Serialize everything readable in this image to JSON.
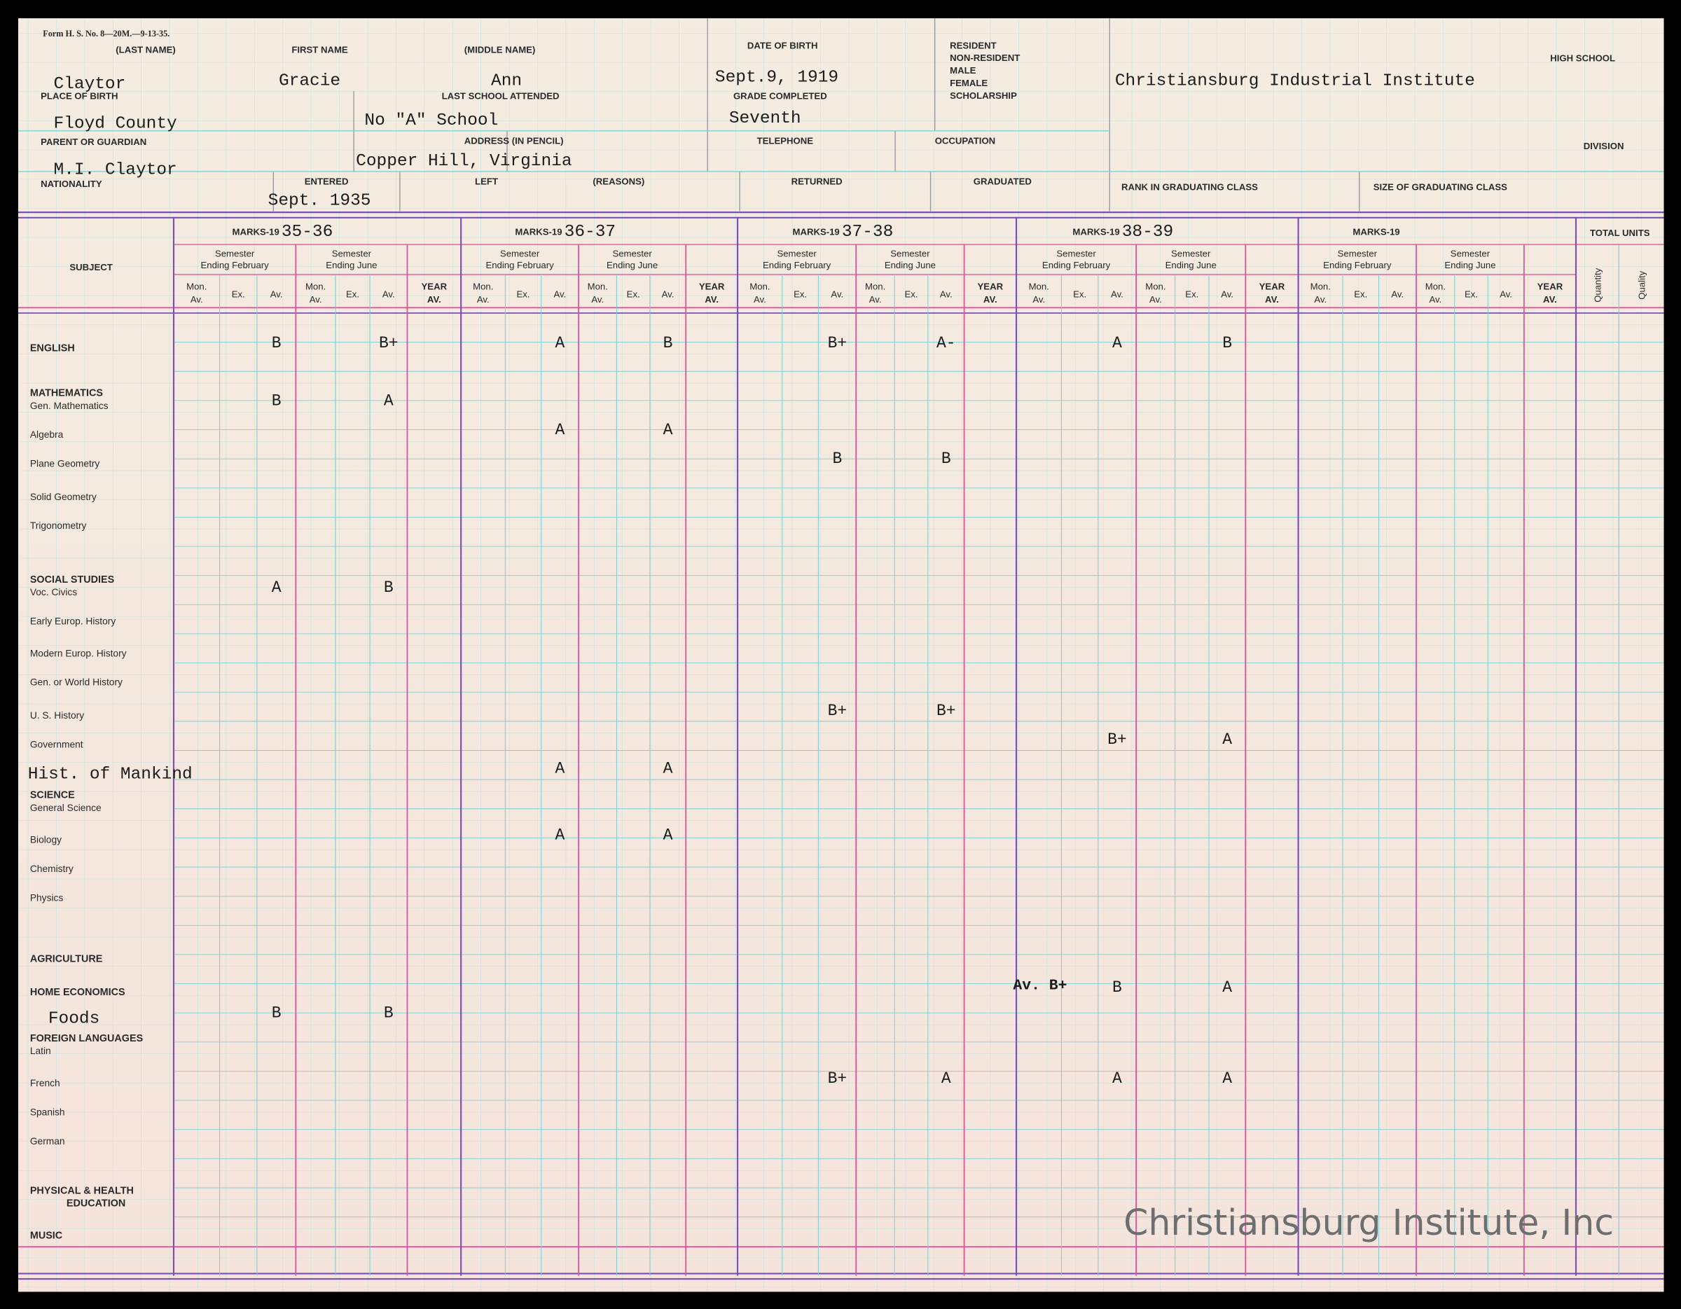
{
  "header": {
    "form_number": "Form H. S. No. 8—20M.—9-13-35.",
    "fields": [
      {
        "label": "(LAST NAME)",
        "value": "Claytor"
      },
      {
        "label": "FIRST NAME",
        "value": "Gracie"
      },
      {
        "label": "(MIDDLE NAME)",
        "value": "Ann"
      },
      {
        "label": "DATE OF BIRTH",
        "value": "Sept.9, 1919"
      },
      {
        "label": "HIGH SCHOOL",
        "value": "Christiansburg Industrial Institute"
      },
      {
        "label": "PLACE OF BIRTH",
        "value": "Floyd County"
      },
      {
        "label": "LAST SCHOOL ATTENDED",
        "value": "No \"A\" School"
      },
      {
        "label": "GRADE COMPLETED",
        "value": "Seventh"
      },
      {
        "label": "PARENT OR GUARDIAN",
        "value": "M.I. Claytor"
      },
      {
        "label": "ADDRESS (IN PENCIL)",
        "value": "Copper Hill, Virginia"
      },
      {
        "label": "TELEPHONE"
      },
      {
        "label": "OCCUPATION"
      },
      {
        "label": "DIVISION"
      },
      {
        "label": "NATIONALITY"
      },
      {
        "label": "ENTERED",
        "value": "Sept. 1935"
      },
      {
        "label": "LEFT"
      },
      {
        "label": "(REASONS)"
      },
      {
        "label": "RETURNED"
      },
      {
        "label": "GRADUATED"
      },
      {
        "label": "RANK IN GRADUATING CLASS"
      },
      {
        "label": "SIZE OF GRADUATING CLASS"
      }
    ],
    "status_options": [
      "RESIDENT",
      "NON-RESIDENT",
      "MALE",
      "FEMALE",
      "SCHOLARSHIP"
    ]
  },
  "table": {
    "subject_header": "SUBJECT",
    "marks_label": "MARKS-19",
    "years": [
      "35-36",
      "36-37",
      "37-38",
      "38-39",
      null
    ],
    "semesters": [
      {
        "line1": "Semester",
        "line2": "Ending February"
      },
      {
        "line1": "Semester",
        "line2": "Ending June"
      }
    ],
    "sub_columns": [
      {
        "line1": "Mon.",
        "line2": "Av."
      },
      {
        "line1": "Ex."
      },
      {
        "line1": "Av."
      }
    ],
    "year_average": {
      "line1": "YEAR",
      "line2": "AV."
    },
    "total_units": "TOTAL UNITS",
    "unit_columns": [
      "Quantity",
      "Quality"
    ],
    "rows": [
      {
        "subject": "ENGLISH",
        "grades": [
          [
            "B",
            "B+"
          ],
          [
            "A",
            "B"
          ],
          [
            "B+",
            "A-"
          ],
          [
            "A",
            "B"
          ]
        ]
      },
      {
        "heading": "MATHEMATICS",
        "subject": "Gen. Mathematics",
        "grades": [
          [
            "B",
            "A"
          ],
          [
            null,
            null
          ],
          [
            null,
            null
          ],
          [
            null,
            null
          ]
        ]
      },
      {
        "subject": "Algebra",
        "grades": [
          [
            null,
            null
          ],
          [
            "A",
            "A"
          ],
          [
            null,
            null
          ],
          [
            null,
            null
          ]
        ]
      },
      {
        "subject": "Plane Geometry",
        "grades": [
          [
            null,
            null
          ],
          [
            null,
            null
          ],
          [
            "B",
            "B"
          ],
          [
            null,
            null
          ]
        ]
      },
      {
        "subject": "Solid Geometry",
        "grades": [
          [
            null,
            null
          ],
          [
            null,
            null
          ],
          [
            null,
            null
          ],
          [
            null,
            null
          ]
        ]
      },
      {
        "subject": "Trigonometry",
        "grades": [
          [
            null,
            null
          ],
          [
            null,
            null
          ],
          [
            null,
            null
          ],
          [
            null,
            null
          ]
        ]
      },
      {
        "heading": "SOCIAL STUDIES",
        "subject": "Voc. Civics",
        "grades": [
          [
            "A",
            "B"
          ],
          [
            null,
            null
          ],
          [
            null,
            null
          ],
          [
            null,
            null
          ]
        ]
      },
      {
        "subject": "Early Europ. History",
        "grades": [
          [
            null,
            null
          ],
          [
            null,
            null
          ],
          [
            null,
            null
          ],
          [
            null,
            null
          ]
        ]
      },
      {
        "subject": "Modern Europ. History",
        "grades": [
          [
            null,
            null
          ],
          [
            null,
            null
          ],
          [
            null,
            null
          ],
          [
            null,
            null
          ]
        ]
      },
      {
        "subject": "Gen. or World History",
        "grades": [
          [
            null,
            null
          ],
          [
            null,
            null
          ],
          [
            null,
            null
          ],
          [
            null,
            null
          ]
        ]
      },
      {
        "subject": "U. S. History",
        "grades": [
          [
            null,
            null
          ],
          [
            null,
            null
          ],
          [
            "B+",
            "B+"
          ],
          [
            null,
            null
          ]
        ]
      },
      {
        "subject": "Government",
        "grades": [
          [
            null,
            null
          ],
          [
            null,
            null
          ],
          [
            null,
            null
          ],
          [
            "B+",
            "A"
          ]
        ]
      },
      {
        "subject": "Hist. of Mankind",
        "typed": true,
        "grades": [
          [
            null,
            null
          ],
          [
            "A",
            "A"
          ],
          [
            null,
            null
          ],
          [
            null,
            null
          ]
        ]
      },
      {
        "heading": "SCIENCE",
        "subject": "General Science",
        "grades": [
          [
            null,
            null
          ],
          [
            null,
            null
          ],
          [
            null,
            null
          ],
          [
            null,
            null
          ]
        ]
      },
      {
        "subject": "Biology",
        "grades": [
          [
            null,
            null
          ],
          [
            "A",
            "A"
          ],
          [
            null,
            null
          ],
          [
            null,
            null
          ]
        ]
      },
      {
        "subject": "Chemistry",
        "grades": [
          [
            null,
            null
          ],
          [
            null,
            null
          ],
          [
            null,
            null
          ],
          [
            null,
            null
          ]
        ]
      },
      {
        "subject": "Physics",
        "grades": [
          [
            null,
            null
          ],
          [
            null,
            null
          ],
          [
            null,
            null
          ],
          [
            null,
            null
          ]
        ]
      },
      {
        "subject": "AGRICULTURE",
        "grades": [
          [
            null,
            null
          ],
          [
            null,
            null
          ],
          [
            null,
            null
          ],
          [
            null,
            null
          ]
        ]
      },
      {
        "subject": "HOME ECONOMICS",
        "note": "Av. B+",
        "grades": [
          [
            null,
            null
          ],
          [
            null,
            null
          ],
          [
            null,
            null
          ],
          [
            "B",
            "A"
          ]
        ]
      },
      {
        "subject": "Foods",
        "typed": true,
        "grades": [
          [
            "B",
            "B"
          ],
          [
            null,
            null
          ],
          [
            null,
            null
          ],
          [
            null,
            null
          ]
        ]
      },
      {
        "heading": "FOREIGN LANGUAGES",
        "subject": "Latin",
        "grades": [
          [
            null,
            null
          ],
          [
            null,
            null
          ],
          [
            null,
            null
          ],
          [
            null,
            null
          ]
        ]
      },
      {
        "subject": "French",
        "grades": [
          [
            null,
            null
          ],
          [
            null,
            null
          ],
          [
            "B+",
            "A"
          ],
          [
            "A",
            "A"
          ]
        ]
      },
      {
        "subject": "Spanish",
        "grades": [
          [
            null,
            null
          ],
          [
            null,
            null
          ],
          [
            null,
            null
          ],
          [
            null,
            null
          ]
        ]
      },
      {
        "subject": "German",
        "grades": [
          [
            null,
            null
          ],
          [
            null,
            null
          ],
          [
            null,
            null
          ],
          [
            null,
            null
          ]
        ]
      },
      {
        "heading": "PHYSICAL & HEALTH",
        "subject": "EDUCATION",
        "grades": [
          [
            null,
            null
          ],
          [
            null,
            null
          ],
          [
            null,
            null
          ],
          [
            null,
            null
          ]
        ]
      },
      {
        "subject": "MUSIC",
        "grades": [
          [
            null,
            null
          ],
          [
            null,
            null
          ],
          [
            null,
            null
          ],
          [
            null,
            null
          ]
        ]
      }
    ]
  },
  "watermark": "Christiansburg Institute, Inc"
}
